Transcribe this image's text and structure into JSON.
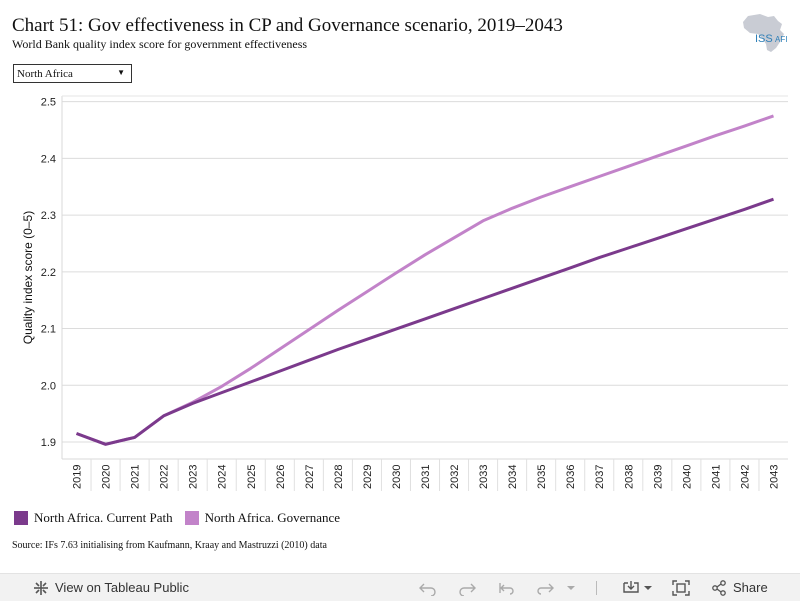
{
  "header": {
    "title": "Chart 51: Gov effectiveness in CP and Governance scenario, 2019–2043",
    "subtitle": "World Bank quality index score for government effectiveness",
    "logo_text": "ISS",
    "logo_suffix": "AFI"
  },
  "filter": {
    "selected": "North Africa"
  },
  "chart_data": {
    "type": "line",
    "title": "Chart 51: Gov effectiveness in CP and Governance scenario, 2019–2043",
    "ylabel": "Quality index score (0–5)",
    "xlabel": "",
    "ylim": [
      1.87,
      2.51
    ],
    "yticks": [
      "1.9",
      "2.0",
      "2.1",
      "2.2",
      "2.3",
      "2.4",
      "2.5"
    ],
    "x": [
      "2019",
      "2020",
      "2021",
      "2022",
      "2023",
      "2024",
      "2025",
      "2026",
      "2027",
      "2028",
      "2029",
      "2030",
      "2031",
      "2032",
      "2033",
      "2034",
      "2035",
      "2036",
      "2037",
      "2038",
      "2039",
      "2040",
      "2041",
      "2042",
      "2043"
    ],
    "series": [
      {
        "name": "North Africa. Governance",
        "color": "#c283c9",
        "values": [
          1.915,
          1.896,
          1.908,
          1.946,
          1.97,
          1.998,
          2.03,
          2.064,
          2.098,
          2.132,
          2.165,
          2.198,
          2.23,
          2.26,
          2.29,
          2.312,
          2.332,
          2.35,
          2.368,
          2.386,
          2.404,
          2.422,
          2.44,
          2.457,
          2.475
        ]
      },
      {
        "name": "North Africa. Current Path",
        "color": "#7b3a8c",
        "values": [
          1.915,
          1.896,
          1.908,
          1.946,
          1.968,
          1.987,
          2.006,
          2.025,
          2.044,
          2.063,
          2.081,
          2.099,
          2.117,
          2.135,
          2.153,
          2.171,
          2.189,
          2.207,
          2.225,
          2.242,
          2.259,
          2.276,
          2.293,
          2.31,
          2.328
        ]
      }
    ],
    "legend_order": [
      "North Africa. Current Path",
      "North Africa. Governance"
    ],
    "grid": true,
    "legend_position": "bottom-left"
  },
  "source": "Source: IFs 7.63 initialising from Kaufmann, Kraay and Mastruzzi (2010) data",
  "toolbar": {
    "view_label": "View on Tableau Public",
    "share_label": "Share"
  }
}
